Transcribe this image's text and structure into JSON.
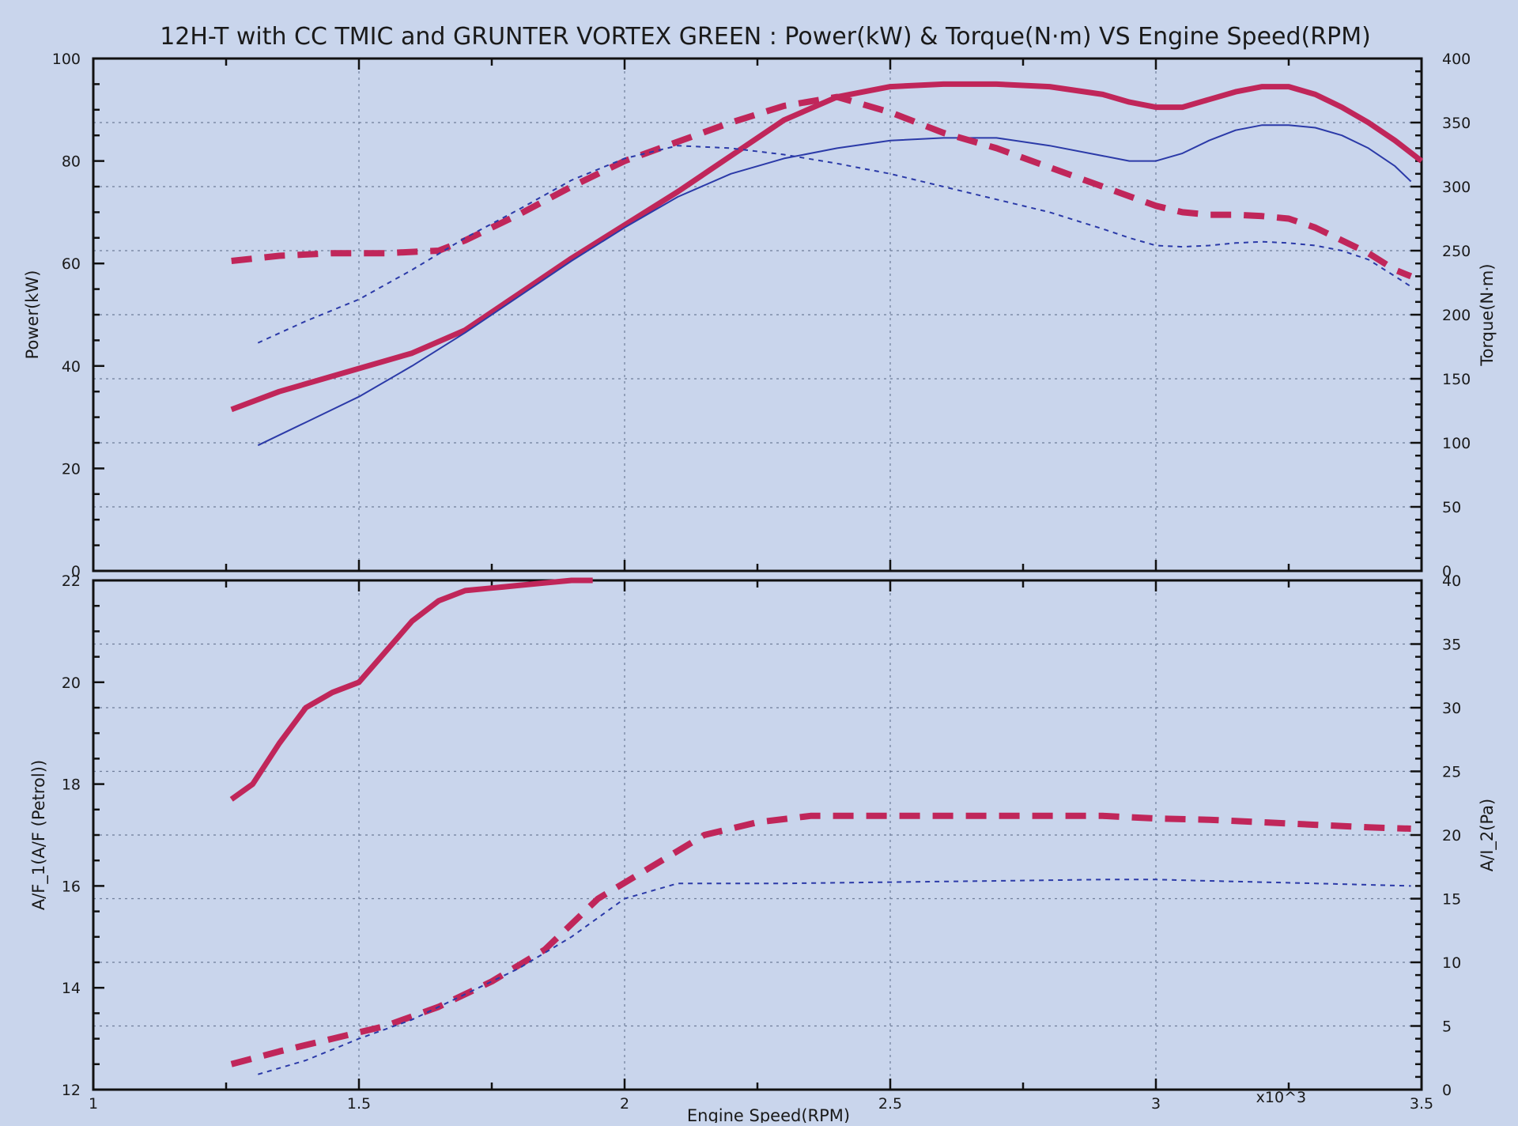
{
  "title": "12H-T with CC TMIC and GRUNTER VORTEX GREEN : Power(kW) & Torque(N·m) VS Engine Speed(RPM)",
  "colors": {
    "background": "#c9d5ec",
    "magenta": "#c0265a",
    "blue": "#2b3aa8",
    "grid": "#6f7d99",
    "axis": "#111111"
  },
  "chart_data": [
    {
      "type": "line",
      "x_tick_labels": [
        "1",
        "1.5",
        "2",
        "2.5",
        "3",
        "x10^3",
        "3.5"
      ],
      "xlim": [
        1,
        3.5
      ],
      "xlabel": "Engine Speed(RPM)",
      "ylabel_left": "Power(kW)",
      "ylim_left": [
        0,
        100
      ],
      "y_ticks_left": [
        "0",
        "20",
        "40",
        "60",
        "80",
        "100"
      ],
      "ylabel_right": "Torque(N·m)",
      "ylim_right": [
        0,
        400
      ],
      "y_ticks_right": [
        "0",
        "50",
        "100",
        "150",
        "200",
        "250",
        "300",
        "350",
        "400"
      ],
      "grid": true,
      "series": [
        {
          "axis": "left",
          "color": "#c0265a",
          "style": "solid-thick",
          "x": [
            1.26,
            1.35,
            1.5,
            1.6,
            1.7,
            1.8,
            1.9,
            2.0,
            2.1,
            2.2,
            2.3,
            2.4,
            2.5,
            2.6,
            2.7,
            2.8,
            2.9,
            2.95,
            3.0,
            3.05,
            3.1,
            3.15,
            3.2,
            3.25,
            3.3,
            3.35,
            3.4,
            3.45,
            3.5
          ],
          "y": [
            31.5,
            35,
            39.5,
            42.5,
            47,
            54,
            61,
            67.5,
            74,
            81,
            88,
            92.5,
            94.5,
            95,
            95,
            94.5,
            93,
            91.5,
            90.5,
            90.5,
            92,
            93.5,
            94.5,
            94.5,
            93,
            90.5,
            87.5,
            84,
            80
          ]
        },
        {
          "axis": "left",
          "color": "#2b3aa8",
          "style": "solid-thin",
          "x": [
            1.31,
            1.4,
            1.5,
            1.6,
            1.7,
            1.8,
            1.9,
            2.0,
            2.1,
            2.2,
            2.3,
            2.4,
            2.5,
            2.6,
            2.7,
            2.8,
            2.9,
            2.95,
            3.0,
            3.05,
            3.1,
            3.15,
            3.2,
            3.25,
            3.3,
            3.35,
            3.4,
            3.45,
            3.48
          ],
          "y": [
            24.5,
            29,
            34,
            40,
            46.5,
            53.5,
            60.5,
            67,
            73,
            77.5,
            80.5,
            82.5,
            84,
            84.5,
            84.5,
            83,
            81,
            80,
            80,
            81.5,
            84,
            86,
            87,
            87,
            86.5,
            85,
            82.5,
            79,
            76
          ]
        },
        {
          "axis": "right",
          "color": "#c0265a",
          "style": "dashed-thick",
          "x": [
            1.26,
            1.35,
            1.45,
            1.55,
            1.65,
            1.7,
            1.8,
            1.9,
            2.0,
            2.1,
            2.2,
            2.3,
            2.4,
            2.5,
            2.6,
            2.7,
            2.8,
            2.9,
            3.0,
            3.05,
            3.1,
            3.15,
            3.2,
            3.25,
            3.3,
            3.35,
            3.4,
            3.45,
            3.48
          ],
          "y": [
            242,
            246,
            248,
            248,
            250,
            258,
            278,
            300,
            320,
            335,
            350,
            363,
            370,
            358,
            342,
            330,
            315,
            300,
            285,
            280,
            278,
            278,
            277,
            275,
            268,
            258,
            248,
            235,
            230
          ]
        },
        {
          "axis": "right",
          "color": "#2b3aa8",
          "style": "dashed-thin",
          "x": [
            1.31,
            1.4,
            1.5,
            1.6,
            1.7,
            1.8,
            1.9,
            2.0,
            2.1,
            2.2,
            2.3,
            2.4,
            2.5,
            2.6,
            2.7,
            2.8,
            2.9,
            2.95,
            3.0,
            3.05,
            3.1,
            3.15,
            3.2,
            3.25,
            3.3,
            3.35,
            3.4,
            3.45,
            3.48
          ],
          "y": [
            178,
            195,
            212,
            235,
            260,
            282,
            305,
            322,
            332,
            330,
            325,
            318,
            310,
            300,
            290,
            280,
            267,
            260,
            254,
            253,
            254,
            256,
            257,
            256,
            254,
            250,
            243,
            230,
            222
          ]
        }
      ]
    },
    {
      "type": "line",
      "x_tick_labels": [
        "1",
        "1.5",
        "2",
        "2.5",
        "3",
        "x10^3",
        "3.5"
      ],
      "xlim": [
        1,
        3.5
      ],
      "xlabel": "Engine Speed(RPM)",
      "ylabel_left": "A/F_1(A/F (Petrol))",
      "ylim_left": [
        12,
        22
      ],
      "y_ticks_left": [
        "12",
        "14",
        "16",
        "18",
        "20",
        "22"
      ],
      "ylabel_right": "A/I_2(Pa)",
      "ylim_right": [
        0,
        40
      ],
      "y_ticks_right": [
        "0",
        "5",
        "10",
        "15",
        "20",
        "25",
        "30",
        "35",
        "40"
      ],
      "grid": true,
      "series": [
        {
          "axis": "left",
          "color": "#c0265a",
          "style": "solid-thick",
          "x": [
            1.26,
            1.3,
            1.35,
            1.4,
            1.45,
            1.5,
            1.55,
            1.6,
            1.65,
            1.7,
            1.75,
            1.8,
            1.85,
            1.9,
            1.94
          ],
          "y": [
            17.7,
            18.0,
            18.8,
            19.5,
            19.8,
            20.0,
            20.6,
            21.2,
            21.6,
            21.8,
            21.85,
            21.9,
            21.95,
            22.0,
            22.0
          ]
        },
        {
          "axis": "right",
          "color": "#c0265a",
          "style": "dashed-thick",
          "x": [
            1.26,
            1.35,
            1.45,
            1.55,
            1.65,
            1.75,
            1.85,
            1.95,
            2.05,
            2.15,
            2.25,
            2.35,
            2.5,
            2.7,
            2.9,
            3.0,
            3.1,
            3.2,
            3.3,
            3.4,
            3.48
          ],
          "y": [
            2,
            3,
            4,
            5,
            6.5,
            8.5,
            11,
            15,
            17.5,
            20,
            21,
            21.5,
            21.5,
            21.5,
            21.5,
            21.3,
            21.2,
            21,
            20.8,
            20.6,
            20.5
          ]
        },
        {
          "axis": "right",
          "color": "#2b3aa8",
          "style": "dashed-thin",
          "x": [
            1.31,
            1.4,
            1.5,
            1.6,
            1.7,
            1.8,
            1.9,
            2.0,
            2.1,
            2.2,
            2.3,
            2.5,
            2.7,
            2.9,
            3.0,
            3.1,
            3.2,
            3.3,
            3.48
          ],
          "y": [
            1.2,
            2.3,
            4,
            5.5,
            7.5,
            9.5,
            12,
            15,
            16.2,
            16.2,
            16.2,
            16.3,
            16.4,
            16.5,
            16.5,
            16.4,
            16.3,
            16.2,
            16.0
          ]
        }
      ]
    }
  ]
}
